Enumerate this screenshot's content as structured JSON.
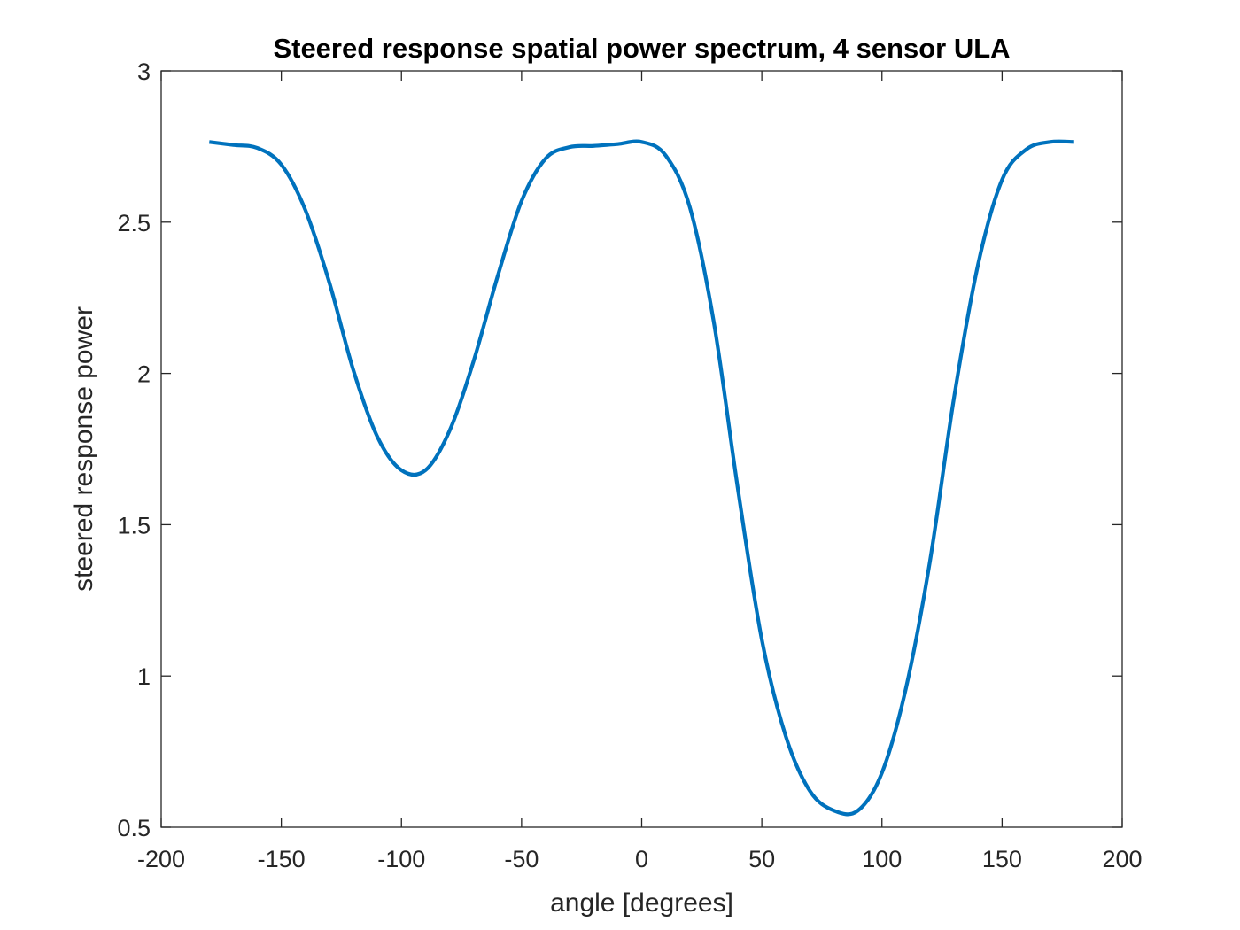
{
  "chart_data": {
    "type": "line",
    "title": "Steered response spatial power spectrum, 4 sensor ULA",
    "xlabel": "angle [degrees]",
    "ylabel": "steered response power",
    "xlim": [
      -200,
      200
    ],
    "ylim": [
      0.5,
      3
    ],
    "xticks": [
      -200,
      -150,
      -100,
      -50,
      0,
      50,
      100,
      150,
      200
    ],
    "yticks": [
      0.5,
      1,
      1.5,
      2,
      2.5,
      3
    ],
    "xtick_labels": [
      "-200",
      "-150",
      "-100",
      "-50",
      "0",
      "50",
      "100",
      "150",
      "200"
    ],
    "ytick_labels": [
      "0.5",
      "1",
      "1.5",
      "2",
      "2.5",
      "3"
    ],
    "grid": false,
    "box": true,
    "series": [
      {
        "color": "#0072BD",
        "x": [
          -180,
          -170,
          -160,
          -150,
          -140,
          -130,
          -120,
          -110,
          -100,
          -90,
          -80,
          -70,
          -60,
          -50,
          -40,
          -30,
          -20,
          -10,
          0,
          10,
          20,
          30,
          40,
          50,
          60,
          70,
          80,
          90,
          100,
          110,
          120,
          130,
          140,
          150,
          160,
          170,
          180
        ],
        "y": [
          2.765,
          2.755,
          2.745,
          2.69,
          2.54,
          2.3,
          2.01,
          1.79,
          1.68,
          1.68,
          1.81,
          2.04,
          2.32,
          2.57,
          2.71,
          2.748,
          2.752,
          2.758,
          2.765,
          2.72,
          2.55,
          2.17,
          1.62,
          1.12,
          0.8,
          0.62,
          0.555,
          0.555,
          0.68,
          0.96,
          1.38,
          1.92,
          2.36,
          2.64,
          2.74,
          2.765,
          2.765
        ]
      }
    ]
  }
}
